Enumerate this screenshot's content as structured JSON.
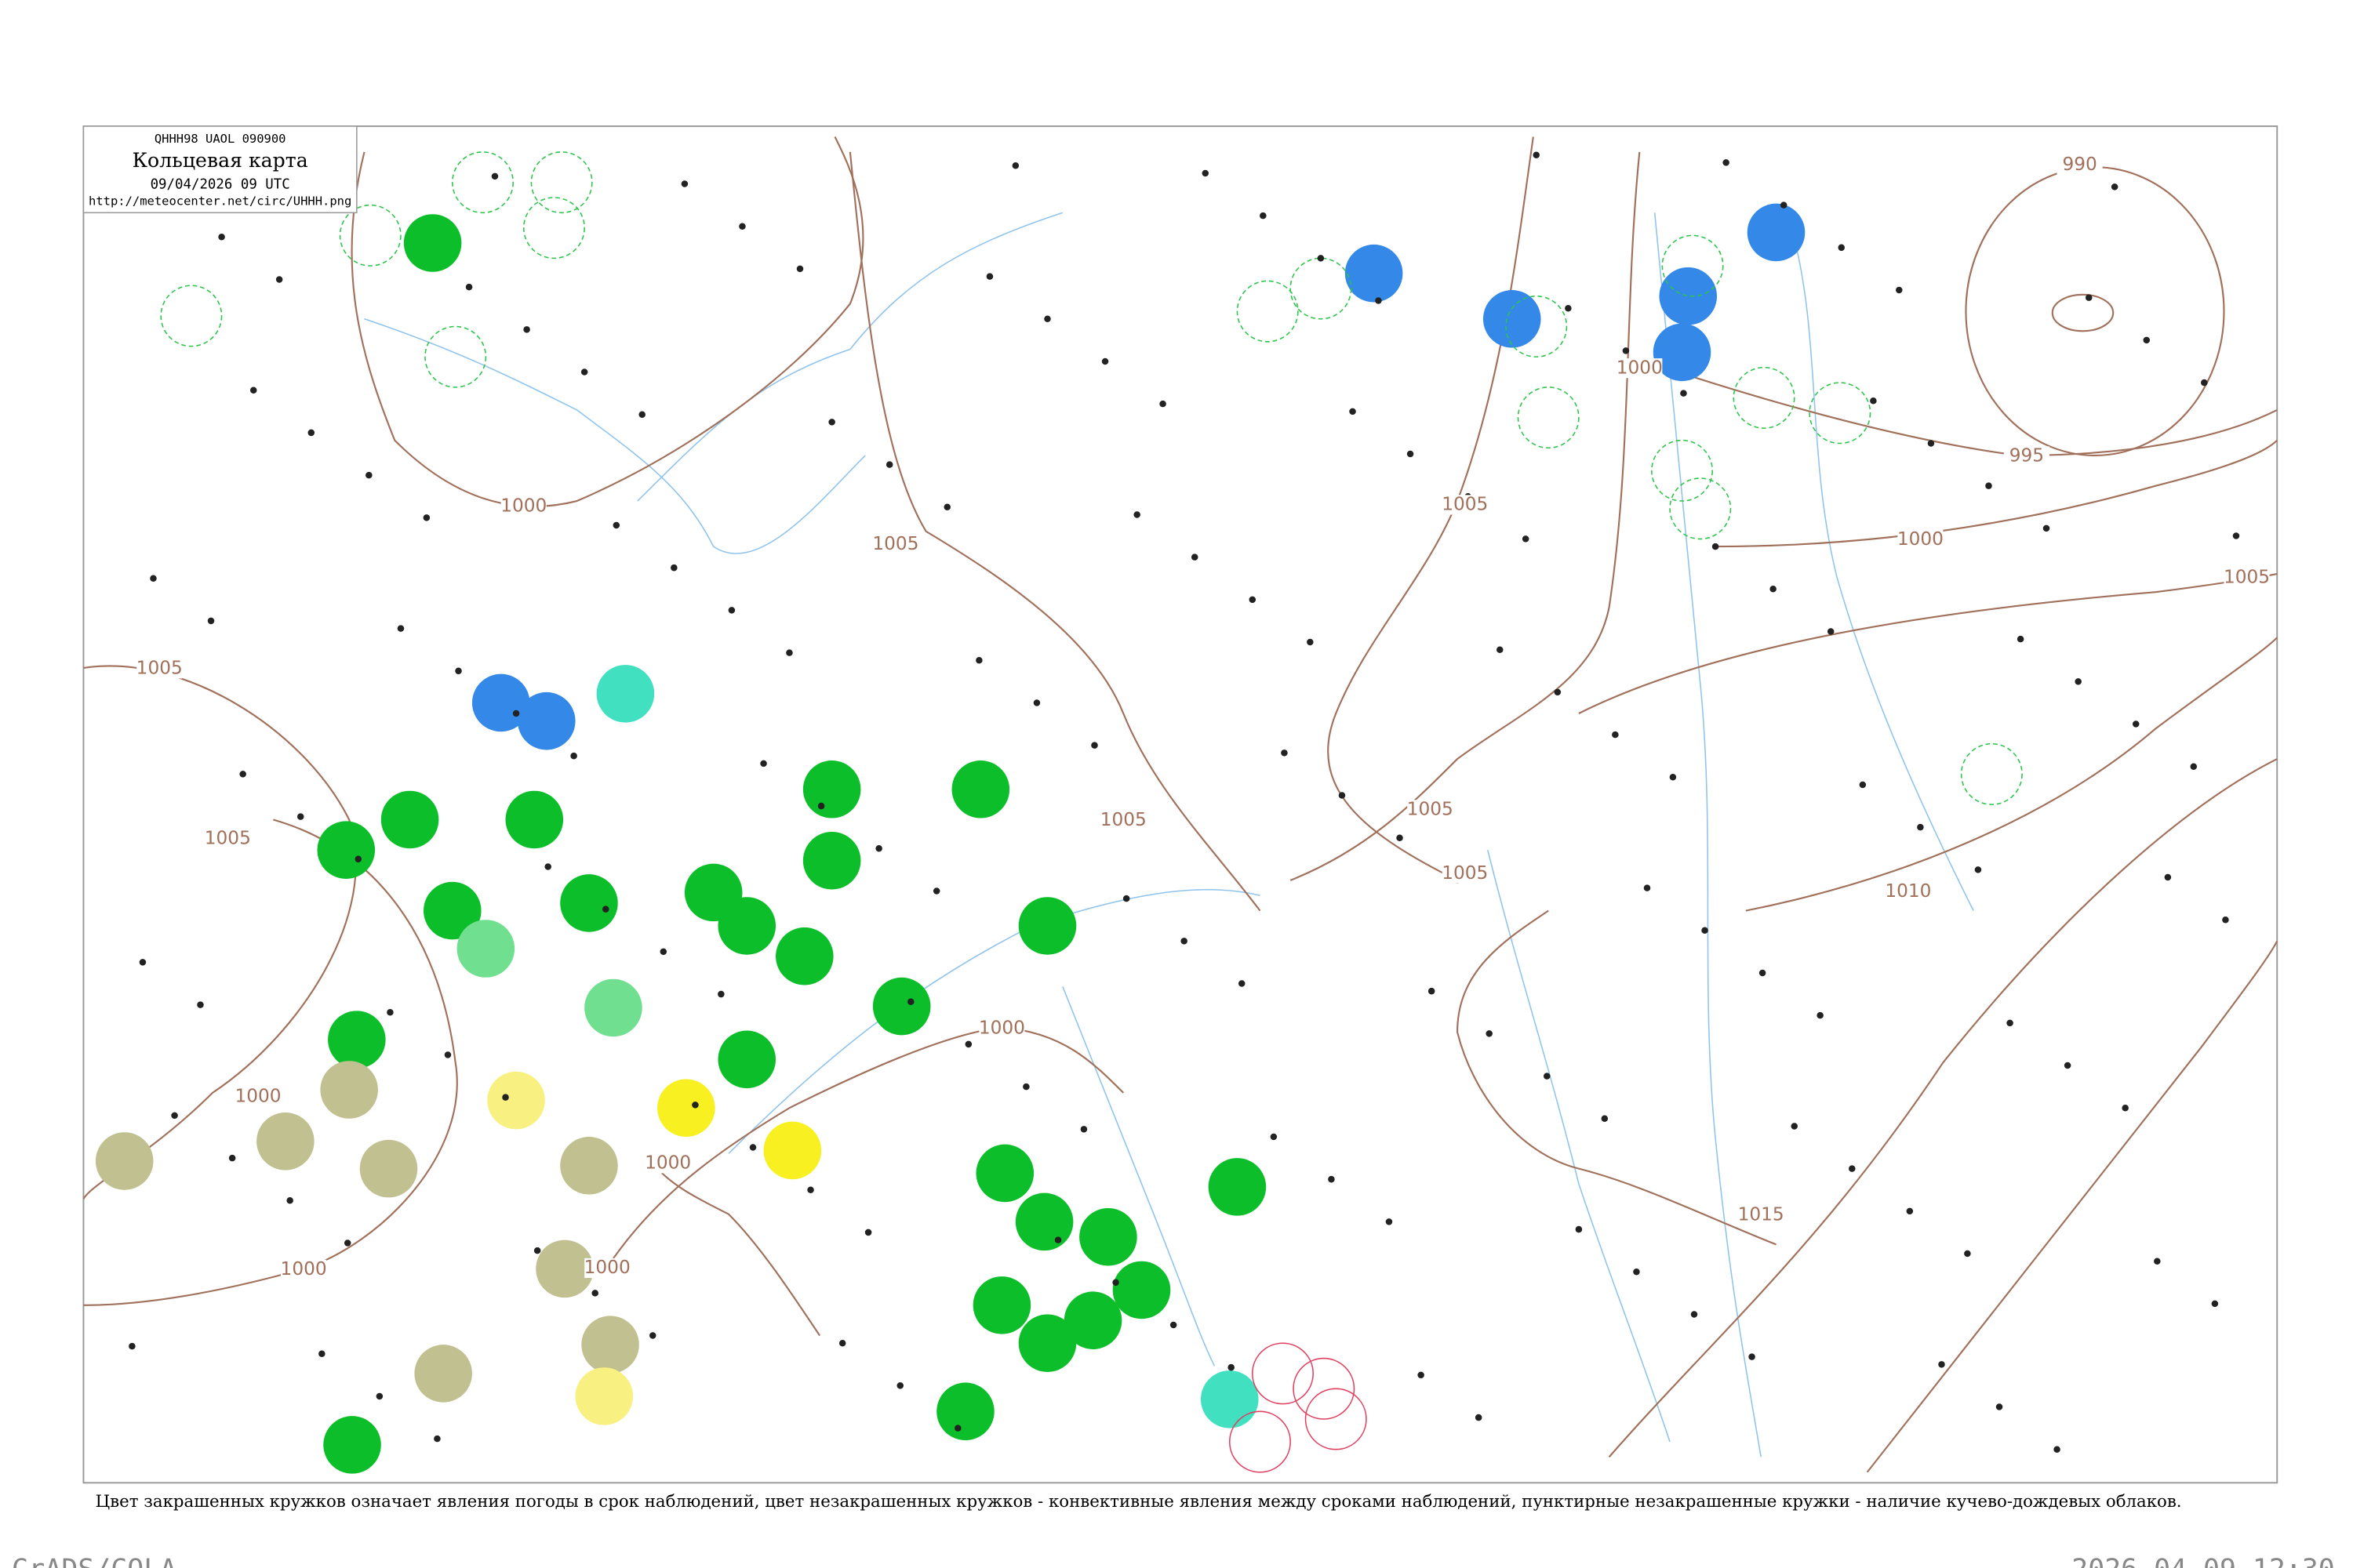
{
  "header": {
    "code": "QHHH98 UAOL 090900",
    "title": "Кольцевая карта",
    "datetime": "09/04/2026 09 UTC",
    "url": "http://meteocenter.net/circ/UHHH.png"
  },
  "isobar_labels": [
    990,
    995,
    1000,
    1000,
    1005,
    1005,
    1005,
    1005,
    1005,
    1005,
    1000,
    1000,
    1000,
    1000,
    1000,
    1010,
    1015,
    1005,
    1005,
    1000
  ],
  "caption": "Цвет закрашенных кружков означает явления погоды в срок наблюдений, цвет незакрашенных кружков - конвективные явления между сроками наблюдений, пунктирные незакрашенные кружки - наличие кучево-дождевых облаков.",
  "footer": {
    "left": "GrADS/COLA",
    "right": "2026-04-09-12:30"
  }
}
